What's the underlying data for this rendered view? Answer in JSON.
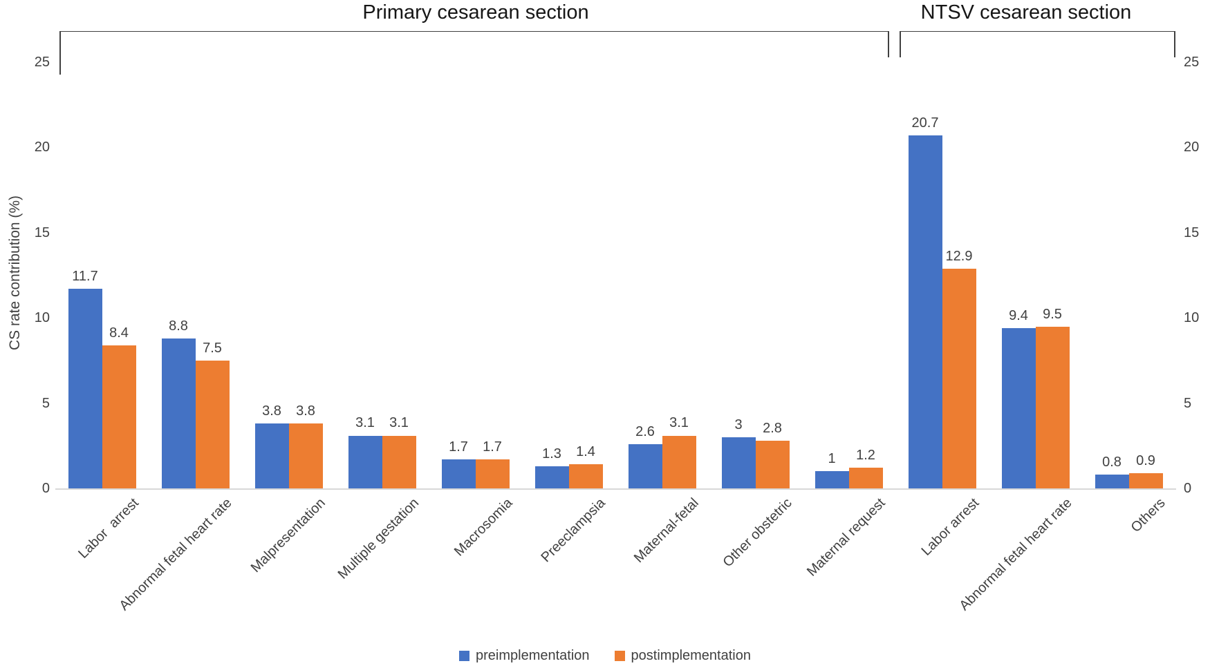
{
  "sections": [
    {
      "label": "Primary cesarean section",
      "start_index": 0,
      "end_index": 8
    },
    {
      "label": "NTSV cesarean section",
      "start_index": 9,
      "end_index": 11
    }
  ],
  "y_axis": {
    "title": "CS rate contribution (%)",
    "tick_labels_left": [
      "0",
      "5",
      "10",
      "15",
      "20",
      "25"
    ],
    "tick_labels_right": [
      "0",
      "5",
      "10",
      "15",
      "20",
      "25"
    ]
  },
  "legend": {
    "items": [
      {
        "label": "preimplementation",
        "color": "#4472C4"
      },
      {
        "label": "postimplementation",
        "color": "#ED7D31"
      }
    ]
  },
  "colors": {
    "pre": "#4472C4",
    "post": "#ED7D31",
    "axis_line": "#d8d8d8",
    "text": "#404040"
  },
  "chart_data": {
    "type": "bar",
    "title": "",
    "xlabel": "",
    "ylabel": "CS rate contribution (%)",
    "ylim": [
      0,
      25
    ],
    "yticks": [
      0,
      5,
      10,
      15,
      20,
      25
    ],
    "grid": false,
    "legend_position": "bottom-center",
    "categories": [
      "Labor  arrest",
      "Abnormal fetal heart rate",
      "Malpresentation",
      "Multiple gestation",
      "Macrosomia",
      "Preeclampsia",
      "Maternal-fetal",
      "Other obstetric",
      "Maternal request",
      "Labor arrest",
      "Abnormal fetal heart rate",
      "Others"
    ],
    "category_sections": [
      "Primary cesarean section",
      "Primary cesarean section",
      "Primary cesarean section",
      "Primary cesarean section",
      "Primary cesarean section",
      "Primary cesarean section",
      "Primary cesarean section",
      "Primary cesarean section",
      "Primary cesarean section",
      "NTSV cesarean section",
      "NTSV cesarean section",
      "NTSV cesarean section"
    ],
    "series": [
      {
        "name": "preimplementation",
        "color": "#4472C4",
        "values": [
          11.7,
          8.8,
          3.8,
          3.1,
          1.7,
          1.3,
          2.6,
          3,
          1,
          20.7,
          9.4,
          0.8
        ],
        "value_labels": [
          "11.7",
          "8.8",
          "3.8",
          "3.1",
          "1.7",
          "1.3",
          "2.6",
          "3",
          "1",
          "20.7",
          "9.4",
          "0.8"
        ]
      },
      {
        "name": "postimplementation",
        "color": "#ED7D31",
        "values": [
          8.4,
          7.5,
          3.8,
          3.1,
          1.7,
          1.4,
          3.1,
          2.8,
          1.2,
          12.9,
          9.5,
          0.9
        ],
        "value_labels": [
          "8.4",
          "7.5",
          "3.8",
          "3.1",
          "1.7",
          "1.4",
          "3.1",
          "2.8",
          "1.2",
          "12.9",
          "9.5",
          "0.9"
        ]
      }
    ]
  }
}
